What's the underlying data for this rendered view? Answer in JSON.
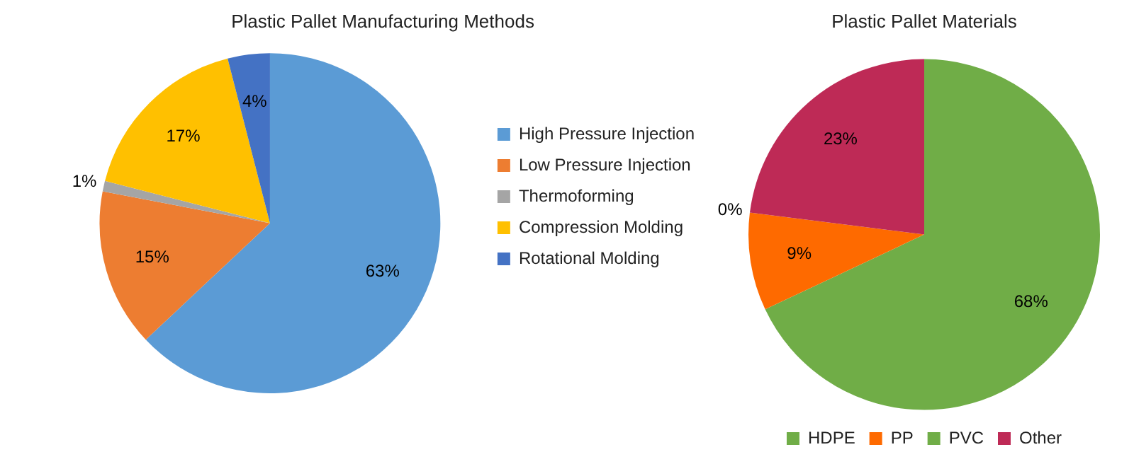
{
  "chart_data": [
    {
      "type": "pie",
      "title": "Plastic Pallet Manufacturing Methods",
      "categories": [
        "High Pressure Injection",
        "Low Pressure Injection",
        "Thermoforming",
        "Compression Molding",
        "Rotational Molding"
      ],
      "values": [
        63,
        15,
        1,
        17,
        4
      ],
      "colors": [
        "#5b9bd5",
        "#ed7d31",
        "#a5a5a5",
        "#ffc000",
        "#4472c4"
      ],
      "value_labels": [
        "63%",
        "15%",
        "1%",
        "17%",
        "4%"
      ],
      "legend": "right"
    },
    {
      "type": "pie",
      "title": "Plastic Pallet Materials",
      "categories": [
        "HDPE",
        "PP",
        "PVC",
        "Other"
      ],
      "values": [
        68,
        9,
        0,
        23
      ],
      "colors": [
        "#70ad47",
        "#fe6a00",
        "#70ad47",
        "#be2a56"
      ],
      "value_labels": [
        "68%",
        "9%",
        "0%",
        "23%"
      ],
      "legend": "bottom"
    }
  ]
}
